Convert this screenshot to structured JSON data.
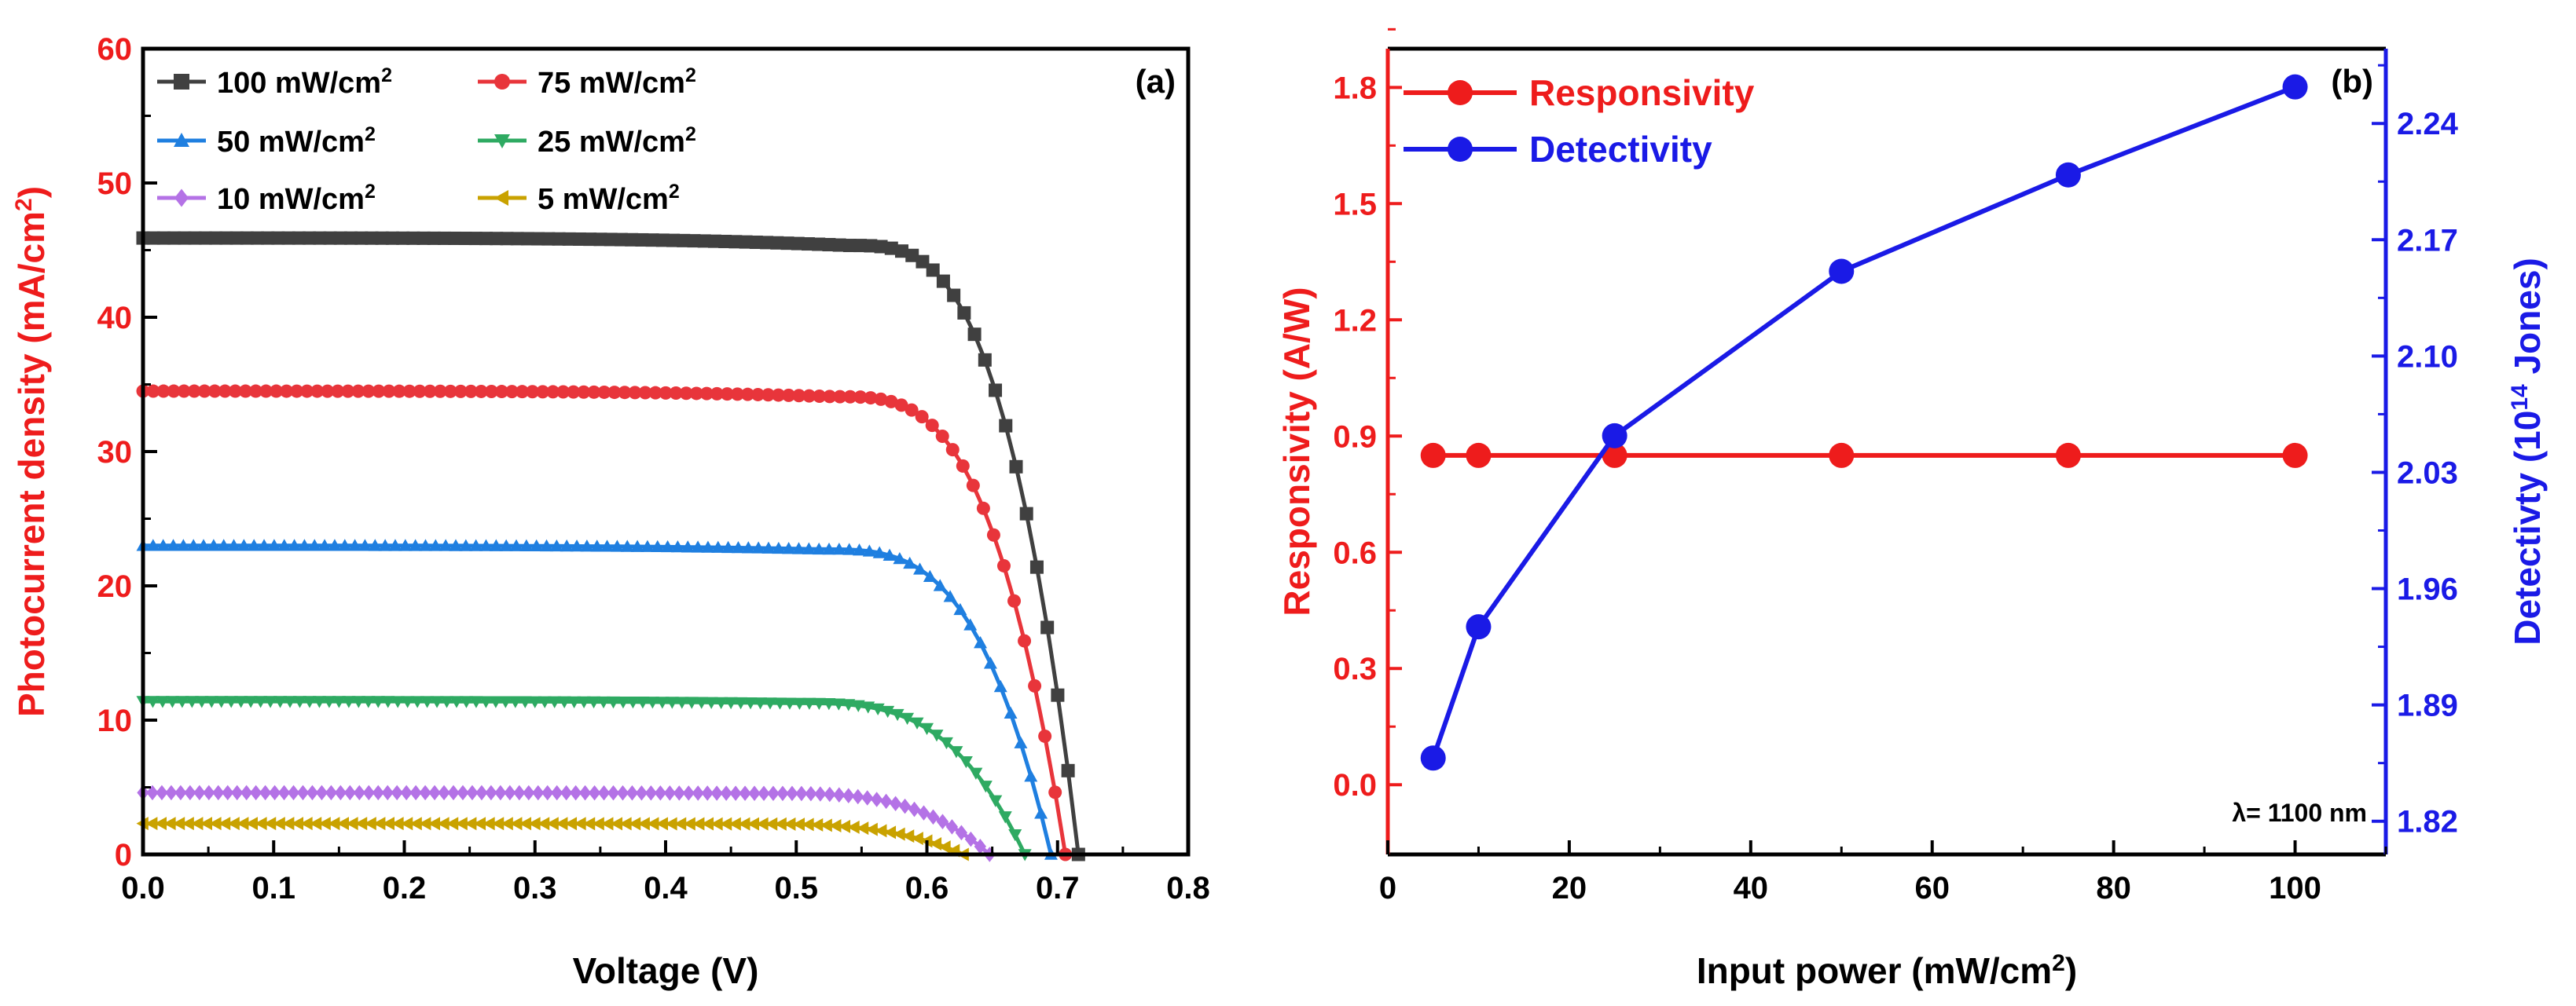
{
  "chart_data": [
    {
      "type": "line",
      "panel_label": "(a)",
      "title": "",
      "xlabel": "Voltage (V)",
      "ylabel": {
        "base": "Photocurrent density (mA/cm",
        "sup": "2",
        "tail": ")"
      },
      "xlim": [
        0.0,
        0.8
      ],
      "ylim": [
        0,
        60
      ],
      "xticks": [
        "0.0",
        "0.1",
        "0.2",
        "0.3",
        "0.4",
        "0.5",
        "0.6",
        "0.7",
        "0.8"
      ],
      "yticks": [
        "0",
        "10",
        "20",
        "30",
        "40",
        "50",
        "60"
      ],
      "legend_position": "top-left",
      "series": [
        {
          "name": "100 mW/cm",
          "name_sup": "2",
          "color": "#404040",
          "marker": "square",
          "jsc": 45.9,
          "voc": 0.716,
          "knee": 0.54
        },
        {
          "name": "75 mW/cm",
          "name_sup": "2",
          "color": "#e8353b",
          "marker": "circle",
          "jsc": 34.5,
          "voc": 0.706,
          "knee": 0.53
        },
        {
          "name": "50 mW/cm",
          "name_sup": "2",
          "color": "#1f7fe0",
          "marker": "triangle-up",
          "jsc": 23.0,
          "voc": 0.695,
          "knee": 0.52
        },
        {
          "name": "25 mW/cm",
          "name_sup": "2",
          "color": "#2eaa62",
          "marker": "triangle-down",
          "jsc": 11.4,
          "voc": 0.675,
          "knee": 0.5
        },
        {
          "name": "10 mW/cm",
          "name_sup": "2",
          "color": "#b472e6",
          "marker": "diamond",
          "jsc": 4.6,
          "voc": 0.648,
          "knee": 0.48
        },
        {
          "name": "5 mW/cm",
          "name_sup": "2",
          "color": "#c9a200",
          "marker": "triangle-left",
          "jsc": 2.3,
          "voc": 0.628,
          "knee": 0.46
        }
      ]
    },
    {
      "type": "line",
      "panel_label": "(b)",
      "title": "",
      "xlabel": {
        "base": "Input power (mW/cm",
        "sup": "2",
        "tail": ")"
      },
      "xlim": [
        0,
        110
      ],
      "xticks": [
        "0",
        "20",
        "40",
        "60",
        "80",
        "100"
      ],
      "xtick_values": [
        0,
        20,
        40,
        60,
        80,
        100
      ],
      "y_left": {
        "label": "Responsivity (A/W)",
        "color": "#ee1c1c",
        "ylim": [
          -0.18,
          1.9
        ],
        "ticks": [
          "0.0",
          "0.3",
          "0.6",
          "0.9",
          "1.2",
          "1.5",
          "1.8"
        ],
        "tick_values": [
          0.0,
          0.3,
          0.6,
          0.9,
          1.2,
          1.5,
          1.8
        ]
      },
      "y_right": {
        "label": {
          "base": "Detectivty (10",
          "sup": "14",
          "tail": " Jones)"
        },
        "color": "#1a1ae6",
        "ylim": [
          1.8,
          2.285
        ],
        "ticks": [
          "1.82",
          "1.89",
          "1.96",
          "2.03",
          "2.10",
          "2.17",
          "2.24"
        ],
        "tick_values": [
          1.82,
          1.89,
          1.96,
          2.03,
          2.1,
          2.17,
          2.24
        ]
      },
      "annotation": "λ= 1100 nm",
      "legend_position": "top-left",
      "series": [
        {
          "name": "Responsivity",
          "axis": "left",
          "color": "#ee1c1c",
          "x": [
            5,
            10,
            25,
            50,
            75,
            100
          ],
          "values": [
            0.85,
            0.85,
            0.85,
            0.85,
            0.85,
            0.85
          ]
        },
        {
          "name": "Detectivity",
          "axis": "right",
          "color": "#1a1ae6",
          "x": [
            5,
            10,
            25,
            50,
            75,
            100
          ],
          "values": [
            1.858,
            1.937,
            2.052,
            2.151,
            2.209,
            2.262
          ]
        }
      ]
    }
  ]
}
